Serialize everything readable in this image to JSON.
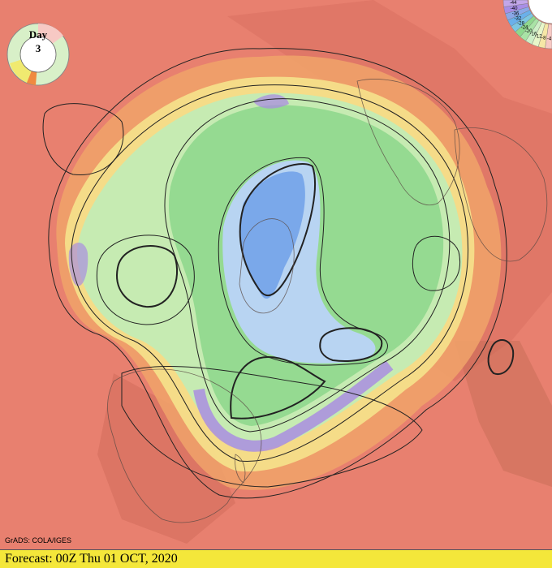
{
  "badge": {
    "label": "Day",
    "number": "3"
  },
  "legend": {
    "ticks": [
      "-4",
      "-8",
      "-12",
      "-16",
      "-20",
      "-24",
      "-28",
      "-32",
      "-36",
      "-40",
      "-44"
    ],
    "colors": [
      "#f7c9c4",
      "#f6e7a6",
      "#e7f6c9",
      "#cdefc7",
      "#a9e3a6",
      "#8fd88d",
      "#7cc6e1",
      "#6ab0ea",
      "#8aa8e8",
      "#a88ee6",
      "#c2a6ea"
    ]
  },
  "credit": "GrADS: COLA/IGES",
  "footer": {
    "text": "Forecast: 00Z Thu 01 OCT, 2020",
    "color": "#f4e73a"
  },
  "palette": {
    "warm_background": "#e8806f",
    "orange_band": "#f0a36a",
    "yellow_band": "#f5e28c",
    "light_green": "#c6ebb2",
    "green": "#8fd88d",
    "light_blue": "#b8d4f2",
    "blue": "#7aa8ea",
    "purple": "#a98ee0"
  }
}
